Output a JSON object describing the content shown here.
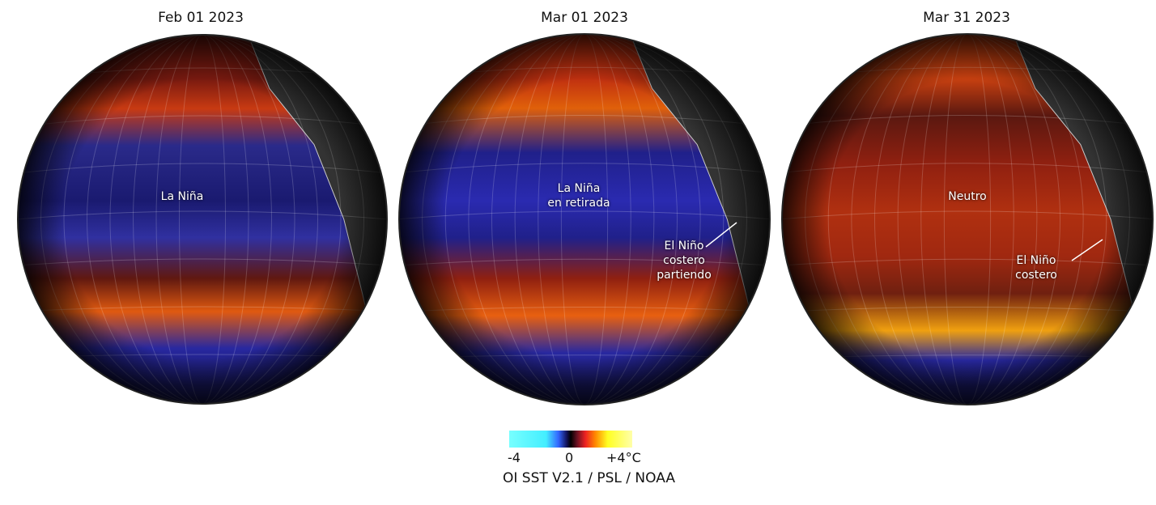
{
  "panels": [
    {
      "date": "Feb 01 2023",
      "labels": [
        "La Niña"
      ]
    },
    {
      "date": "Mar 01 2023",
      "labels": [
        "La Niña\nen retirada",
        "El Niño\ncostero\npartiendo"
      ]
    },
    {
      "date": "Mar 31 2023",
      "labels": [
        "Neutro",
        "El Niño\ncostero"
      ]
    }
  ],
  "colorbar": {
    "min_label": "-4",
    "mid_label": "0",
    "max_label": "+4°C",
    "colors": [
      "#77ffff",
      "#3366ff",
      "#000000",
      "#ee2222",
      "#ffff22"
    ]
  },
  "source": "OI SST V2.1 / PSL / NOAA"
}
